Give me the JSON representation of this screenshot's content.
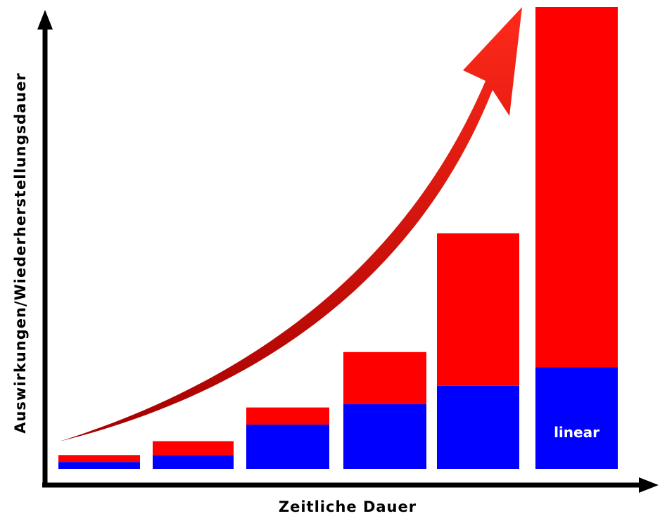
{
  "chart_data": {
    "type": "stacked-bar",
    "x_label": "Zeitliche Dauer",
    "y_label": "Auswirkungen/Wiederherstellungsdauer",
    "categories": [
      null,
      null,
      null,
      null,
      null,
      null
    ],
    "series": [
      {
        "name": "linear",
        "color": "#0000ff",
        "values": [
          1.5,
          3,
          9.6,
          14,
          18,
          22
        ]
      },
      {
        "color": "#ff0000",
        "values": [
          1.5,
          3,
          3.7,
          11.3,
          33,
          78
        ]
      }
    ],
    "ylim": [
      0,
      100
    ]
  }
}
